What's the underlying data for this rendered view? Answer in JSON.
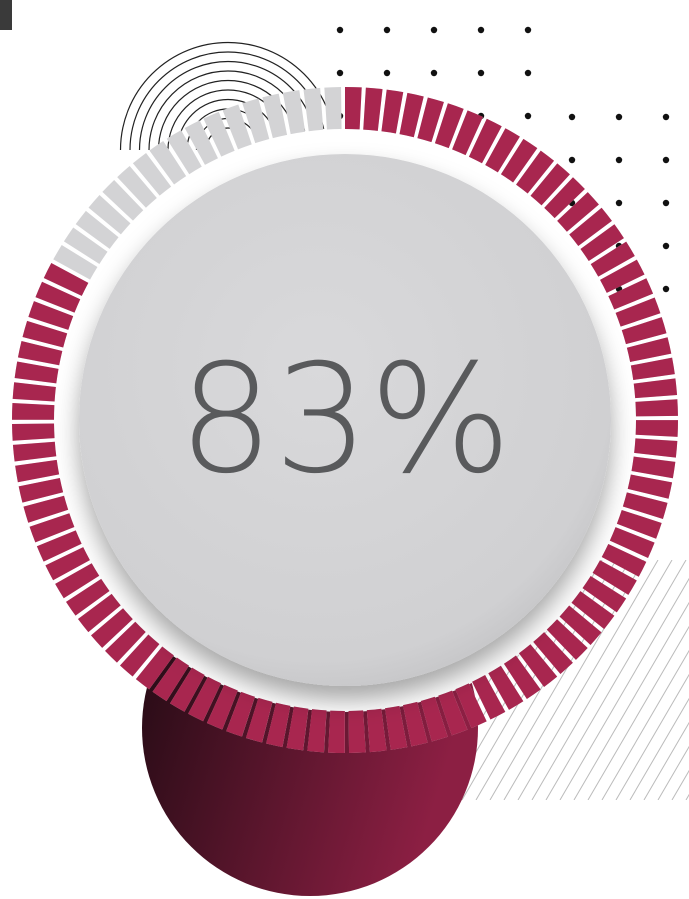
{
  "chart_data": {
    "type": "gauge",
    "values": [
      83
    ],
    "value_labels": [
      "83%"
    ],
    "ylim": [
      0,
      100
    ],
    "color": "#a8264f",
    "track_color": "#d3d3d5"
  }
}
